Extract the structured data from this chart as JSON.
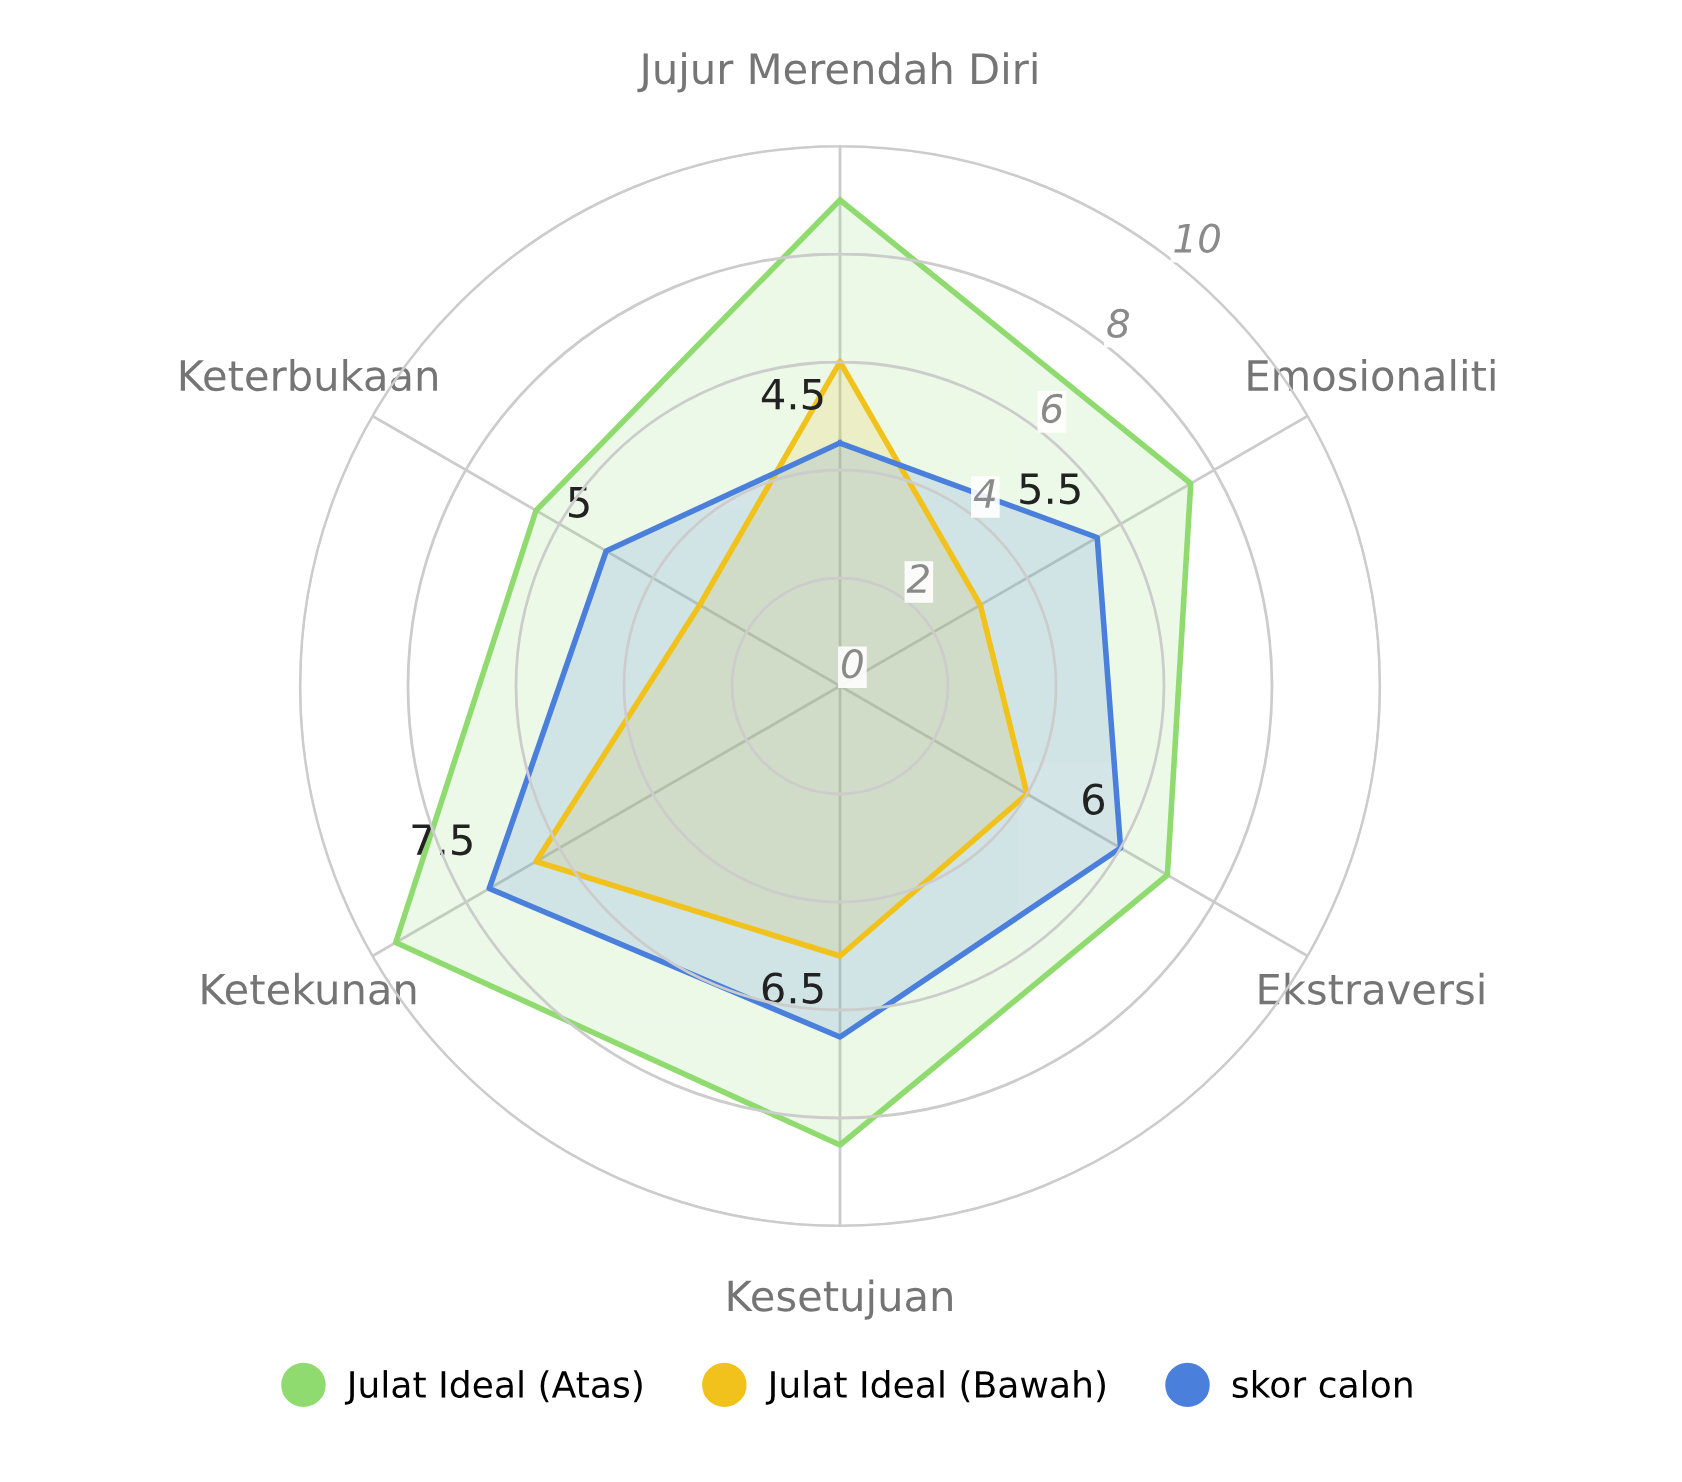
{
  "chart_data": {
    "type": "radar",
    "categories": [
      "Jujur Merendah Diri",
      "Emosionaliti",
      "Ekstraversi",
      "Kesetujuan",
      "Ketekunan",
      "Keterbukaan"
    ],
    "ylim": [
      0,
      10
    ],
    "yticks": [
      0,
      2,
      4,
      6,
      8,
      10
    ],
    "grid": true,
    "legend": "bottom",
    "marker": "none",
    "line_style": "solid",
    "series": [
      {
        "name": "Julat Ideal (Atas)",
        "color": "#8fdb6f",
        "values": [
          9,
          7.5,
          7,
          8.5,
          9.5,
          6.5
        ]
      },
      {
        "name": "Julat Ideal (Bawah)",
        "color": "#f1c21b",
        "values": [
          6,
          3,
          4,
          5,
          6.5,
          3
        ]
      },
      {
        "name": "skor calon",
        "color": "#4a7fdc",
        "values": [
          4.5,
          5.5,
          6,
          6.5,
          7.5,
          5
        ],
        "value_labels": [
          "4.5",
          "5.5",
          "6",
          "6.5",
          "7.5",
          "5"
        ]
      }
    ]
  }
}
